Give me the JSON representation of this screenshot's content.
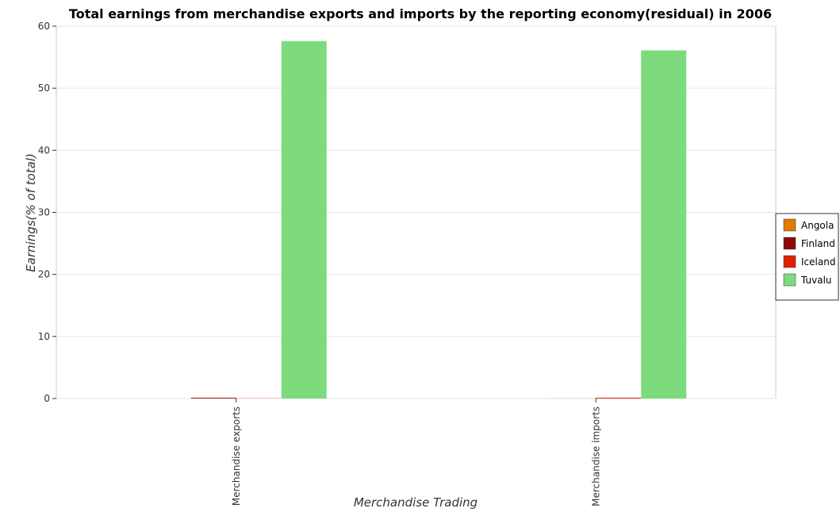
{
  "chart_data": {
    "type": "bar",
    "title": "Total earnings from merchandise exports and imports by the reporting economy(residual) in 2006",
    "xlabel": "Merchandise Trading",
    "ylabel": "Earnings(% of total)",
    "categories": [
      "Merchandise exports",
      "Merchandise imports"
    ],
    "series": [
      {
        "name": "Angola",
        "color": "#e07b00",
        "values": [
          0.0,
          0.0
        ]
      },
      {
        "name": "Finland",
        "color": "#8b0a0a",
        "values": [
          0.12,
          0.01
        ]
      },
      {
        "name": "Iceland",
        "color": "#e02000",
        "values": [
          0.03,
          0.13
        ]
      },
      {
        "name": "Tuvalu",
        "color": "#7ddb7d",
        "values": [
          57.6,
          56.1
        ]
      }
    ],
    "ylim": [
      0,
      60
    ],
    "yticks": [
      0,
      10,
      20,
      30,
      40,
      50,
      60
    ],
    "grid": true,
    "legend_position": "right"
  }
}
